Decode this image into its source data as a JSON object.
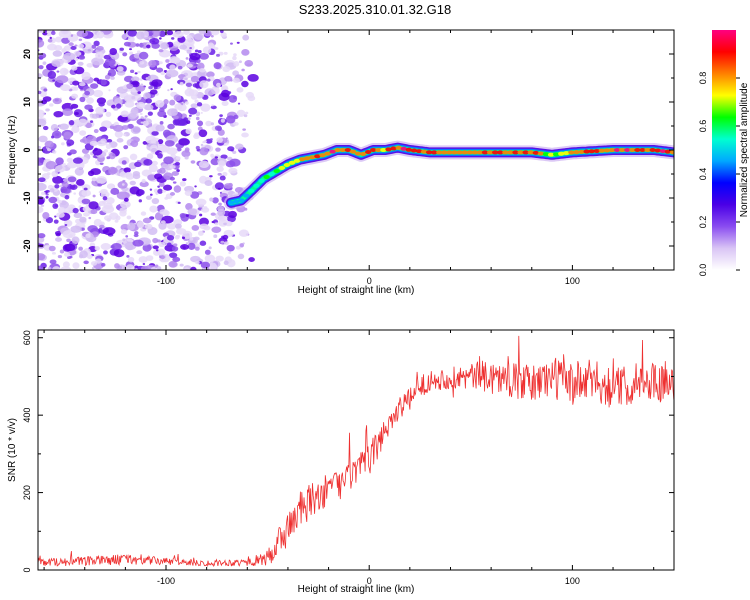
{
  "title": "S233.2025.310.01.32.G18",
  "colors": {
    "line": "#ee3030",
    "axis": "#000000",
    "colormap": [
      "#ffffff",
      "#d9c4f5",
      "#8a4cf0",
      "#4a00e6",
      "#0000ff",
      "#00a8ff",
      "#00ffd0",
      "#00ff00",
      "#ffff00",
      "#ff8000",
      "#ff0000",
      "#ff0080"
    ]
  },
  "chart_data": [
    {
      "type": "heatmap",
      "title": "",
      "xlabel": "Height of straight line (km)",
      "ylabel": "Frequency (Hz)",
      "xlim": [
        -163,
        150
      ],
      "ylim": [
        -25,
        25
      ],
      "xticks": [
        -100,
        0,
        100
      ],
      "yticks": [
        -20,
        -10,
        0,
        10,
        20
      ],
      "xtick_labels": [
        "-100",
        "0",
        "100"
      ],
      "ytick_labels": [
        "-20",
        "-10",
        "0",
        "10",
        "20"
      ],
      "colorbar": {
        "label": "Normalized spectral amplitude",
        "range": [
          0,
          1
        ],
        "ticks": [
          0.0,
          0.2,
          0.4,
          0.6,
          0.8
        ],
        "tick_labels": [
          "0.0",
          "0.2",
          "0.4",
          "0.6",
          "0.8"
        ]
      },
      "noise_region_x": [
        -163,
        -60
      ],
      "ridge": {
        "x": [
          -68,
          -63,
          -58,
          -52,
          -46,
          -40,
          -34,
          -28,
          -22,
          -16,
          -10,
          -4,
          2,
          8,
          14,
          20,
          30,
          50,
          80,
          90,
          100,
          120,
          140,
          150
        ],
        "frequency": [
          -11,
          -10.5,
          -8.5,
          -6,
          -4.5,
          -3,
          -2,
          -1.5,
          -1,
          0,
          0,
          -1,
          0,
          0,
          0.5,
          0,
          -0.5,
          -0.5,
          -0.5,
          -1,
          -0.5,
          0,
          0,
          -0.5
        ],
        "amplitude": [
          0.45,
          0.4,
          0.5,
          0.6,
          0.7,
          0.75,
          0.8,
          0.85,
          0.9,
          0.95,
          0.9,
          0.85,
          0.9,
          0.9,
          0.95,
          0.95,
          0.9,
          0.92,
          0.9,
          0.7,
          0.85,
          0.95,
          0.95,
          0.9
        ]
      }
    },
    {
      "type": "line",
      "title": "",
      "xlabel": "Height of straight line (km)",
      "ylabel": "SNR (10 * v/v)",
      "xlim": [
        -163,
        150
      ],
      "ylim": [
        0,
        620
      ],
      "xticks": [
        -100,
        0,
        100
      ],
      "yticks": [
        0,
        200,
        400,
        600
      ],
      "xtick_labels": [
        "-100",
        "0",
        "100"
      ],
      "ytick_labels": [
        "0",
        "200",
        "400",
        "600"
      ],
      "series": [
        {
          "name": "SNR",
          "x": [
            -163,
            -140,
            -120,
            -100,
            -80,
            -60,
            -50,
            -45,
            -40,
            -35,
            -30,
            -25,
            -20,
            -15,
            -10,
            -5,
            0,
            5,
            10,
            15,
            20,
            25,
            30,
            40,
            50,
            60,
            70,
            80,
            90,
            100,
            110,
            120,
            130,
            140,
            150
          ],
          "y": [
            20,
            22,
            28,
            22,
            18,
            20,
            30,
            60,
            110,
            150,
            170,
            190,
            210,
            220,
            240,
            260,
            285,
            330,
            385,
            420,
            440,
            470,
            490,
            495,
            500,
            500,
            490,
            480,
            500,
            480,
            490,
            470,
            480,
            490,
            480
          ],
          "noise": [
            10,
            12,
            14,
            10,
            8,
            10,
            20,
            50,
            45,
            50,
            50,
            45,
            40,
            40,
            40,
            40,
            40,
            40,
            35,
            30,
            30,
            30,
            25,
            30,
            35,
            45,
            45,
            50,
            55,
            60,
            55,
            55,
            50,
            50,
            45
          ]
        }
      ]
    }
  ]
}
